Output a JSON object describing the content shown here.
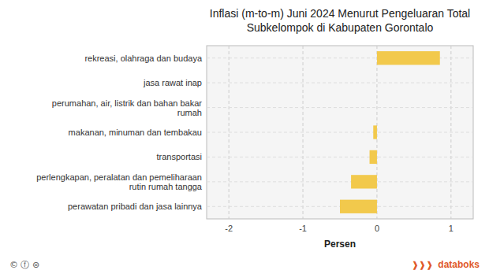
{
  "chart_data": {
    "type": "bar",
    "orientation": "horizontal",
    "title": "Inflasi (m-to-m) Juni 2024 Menurut Pengeluaran Total\nSubkelompok di Kabupaten Gorontalo",
    "categories": [
      "perawatan pribadi dan jasa lainnya",
      "perlengkapan, peralatan dan pemeliharaan rutin rumah tangga",
      "transportasi",
      "makanan, minuman dan tembakau",
      "perumahan, air, listrik dan bahan bakar rumah",
      "jasa rawat inap",
      "rekreasi, olahraga dan budaya"
    ],
    "values": [
      -0.5,
      -0.35,
      -0.1,
      -0.05,
      0.0,
      0.0,
      0.85
    ],
    "color": "#F2C94C",
    "x_label": "Persen",
    "xlim": [
      -2.3,
      1.3
    ],
    "xticks": [
      -2,
      -1,
      0,
      1
    ],
    "grid": true,
    "annotations": [
      "© ⓕ ⊜",
      "❱❱❱",
      "databoks"
    ]
  }
}
